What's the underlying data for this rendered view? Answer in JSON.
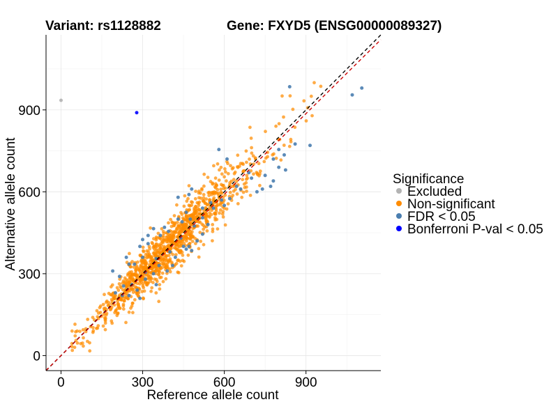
{
  "chart_data": {
    "type": "scatter",
    "title_left": "Variant: rs1128882",
    "title_right": "Gene: FXYD5 (ENSG00000089327)",
    "xlabel": "Reference allele count",
    "ylabel": "Alternative allele count",
    "xlim": [
      -55,
      1175
    ],
    "ylim": [
      -55,
      1175
    ],
    "x_ticks": [
      0,
      300,
      600,
      900
    ],
    "y_ticks": [
      0,
      300,
      600,
      900
    ],
    "grid": true,
    "legend": {
      "title": "Significance",
      "position": "right",
      "entries": [
        {
          "name": "Excluded",
          "color": "#b3b3b3"
        },
        {
          "name": "Non-significant",
          "color": "#ff8c00"
        },
        {
          "name": "FDR < 0.05",
          "color": "#4a7eb0"
        },
        {
          "name": "Bonferroni P-val < 0.05",
          "color": "#0000ff"
        }
      ]
    },
    "reference_lines": [
      {
        "slope": 1.0,
        "intercept": 0,
        "style": "dashed",
        "color": "#000000"
      },
      {
        "slope": 0.985,
        "intercept": 0,
        "style": "dashed",
        "color": "#cc0000"
      }
    ],
    "series": [
      {
        "name": "Excluded",
        "color": "#b3b3b3",
        "points": [
          [
            0,
            935
          ]
        ]
      },
      {
        "name": "Bonferroni P-val < 0.05",
        "color": "#0000ff",
        "points": [
          [
            278,
            890
          ]
        ]
      },
      {
        "name": "FDR < 0.05",
        "color": "#4a7eb0",
        "points": [
          [
            840,
            985
          ],
          [
            1070,
            955
          ],
          [
            1105,
            980
          ],
          [
            860,
            775
          ],
          [
            915,
            770
          ],
          [
            780,
            640
          ],
          [
            800,
            690
          ],
          [
            825,
            680
          ],
          [
            820,
            735
          ],
          [
            780,
            720
          ],
          [
            750,
            660
          ],
          [
            720,
            600
          ],
          [
            740,
            610
          ],
          [
            580,
            755
          ],
          [
            610,
            720
          ],
          [
            645,
            620
          ],
          [
            620,
            575
          ],
          [
            590,
            570
          ],
          [
            560,
            540
          ],
          [
            520,
            540
          ],
          [
            470,
            590
          ],
          [
            480,
            610
          ],
          [
            430,
            580
          ],
          [
            460,
            525
          ],
          [
            430,
            500
          ],
          [
            445,
            490
          ],
          [
            475,
            500
          ],
          [
            520,
            505
          ],
          [
            550,
            560
          ],
          [
            600,
            550
          ],
          [
            480,
            385
          ],
          [
            470,
            400
          ],
          [
            500,
            420
          ],
          [
            520,
            445
          ],
          [
            440,
            430
          ],
          [
            450,
            400
          ],
          [
            400,
            380
          ],
          [
            420,
            360
          ],
          [
            460,
            390
          ],
          [
            410,
            330
          ],
          [
            390,
            310
          ],
          [
            360,
            330
          ],
          [
            340,
            300
          ],
          [
            310,
            280
          ],
          [
            350,
            260
          ],
          [
            280,
            240
          ],
          [
            260,
            260
          ],
          [
            290,
            210
          ],
          [
            250,
            220
          ],
          [
            225,
            220
          ],
          [
            200,
            230
          ],
          [
            190,
            310
          ],
          [
            215,
            290
          ],
          [
            240,
            360
          ],
          [
            250,
            335
          ],
          [
            300,
            425
          ],
          [
            320,
            440
          ],
          [
            340,
            465
          ],
          [
            380,
            470
          ],
          [
            320,
            410
          ],
          [
            290,
            400
          ],
          [
            300,
            360
          ],
          [
            350,
            355
          ],
          [
            365,
            440
          ],
          [
            395,
            455
          ],
          [
            270,
            335
          ],
          [
            230,
            255
          ],
          [
            310,
            305
          ],
          [
            490,
            475
          ],
          [
            540,
            480
          ],
          [
            700,
            650
          ],
          [
            690,
            670
          ],
          [
            660,
            610
          ],
          [
            770,
            620
          ],
          [
            800,
            755
          ]
        ]
      }
    ],
    "non_significant_generator": {
      "seed": 1128882,
      "count": 1150,
      "x_range": [
        40,
        960
      ],
      "center_x": 390,
      "spread_x": 130,
      "noise": 30
    }
  }
}
